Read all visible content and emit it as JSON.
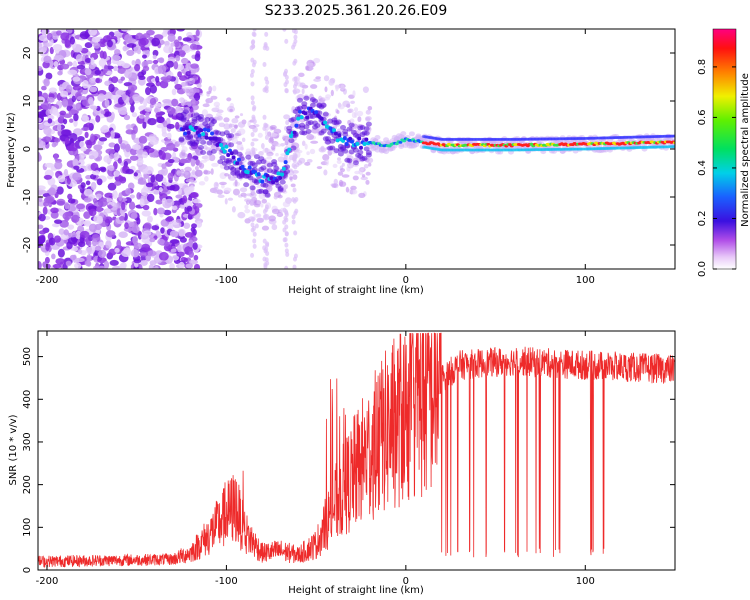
{
  "title": "S233.2025.361.20.26.E09",
  "colors": {
    "snr_line": "#ee2a2a",
    "spectro_low": "#c7a0f0",
    "spectro_mid": "#7a1fe0"
  },
  "chart_data": [
    {
      "type": "heatmap",
      "xlabel": "Height of straight line (km)",
      "ylabel": "Frequency (Hz)",
      "xlim": [
        -205,
        150
      ],
      "ylim": [
        -25,
        25
      ],
      "xticks": [
        -200,
        -100,
        0,
        100
      ],
      "yticks": [
        -20,
        -10,
        0,
        10,
        20
      ],
      "colorbar": {
        "label": "Normalized spectral amplitude",
        "range": [
          0.0,
          0.95
        ],
        "ticks": [
          "0.0",
          "0.2",
          "0.4",
          "0.6",
          "0.8"
        ],
        "tick_values": [
          0.0,
          0.2,
          0.4,
          0.6,
          0.8
        ]
      },
      "ridge": [
        {
          "x": -125,
          "f": 4
        },
        {
          "x": -110,
          "f": 3
        },
        {
          "x": -100,
          "f": 0
        },
        {
          "x": -90,
          "f": -4
        },
        {
          "x": -80,
          "f": -6
        },
        {
          "x": -70,
          "f": -6
        },
        {
          "x": -60,
          "f": 7
        },
        {
          "x": -50,
          "f": 8
        },
        {
          "x": -40,
          "f": 3
        },
        {
          "x": -30,
          "f": 1
        },
        {
          "x": -20,
          "f": 1.5
        },
        {
          "x": -10,
          "f": 0.5
        },
        {
          "x": 0,
          "f": 2
        },
        {
          "x": 20,
          "f": 0.8
        },
        {
          "x": 60,
          "f": 0.8
        },
        {
          "x": 100,
          "f": 1
        },
        {
          "x": 150,
          "f": 1.5
        }
      ]
    },
    {
      "type": "line",
      "xlabel": "Height of straight line (km)",
      "ylabel": "SNR (10 * v/v)",
      "xlim": [
        -205,
        150
      ],
      "ylim": [
        0,
        560
      ],
      "xticks": [
        -200,
        -100,
        0,
        100
      ],
      "yticks": [
        0,
        100,
        200,
        300,
        400,
        500
      ],
      "envelope": [
        {
          "x": -205,
          "snr": 20
        },
        {
          "x": -130,
          "snr": 25
        },
        {
          "x": -120,
          "snr": 40
        },
        {
          "x": -110,
          "snr": 80
        },
        {
          "x": -100,
          "snr": 130
        },
        {
          "x": -95,
          "snr": 150
        },
        {
          "x": -90,
          "snr": 90
        },
        {
          "x": -80,
          "snr": 40
        },
        {
          "x": -70,
          "snr": 45
        },
        {
          "x": -60,
          "snr": 35
        },
        {
          "x": -50,
          "snr": 60
        },
        {
          "x": -40,
          "snr": 150
        },
        {
          "x": -30,
          "snr": 220
        },
        {
          "x": -20,
          "snr": 280
        },
        {
          "x": -10,
          "snr": 330
        },
        {
          "x": 0,
          "snr": 370
        },
        {
          "x": 10,
          "snr": 400
        },
        {
          "x": 20,
          "snr": 450
        },
        {
          "x": 30,
          "snr": 480
        },
        {
          "x": 60,
          "snr": 490
        },
        {
          "x": 100,
          "snr": 480
        },
        {
          "x": 150,
          "snr": 470
        }
      ]
    }
  ]
}
